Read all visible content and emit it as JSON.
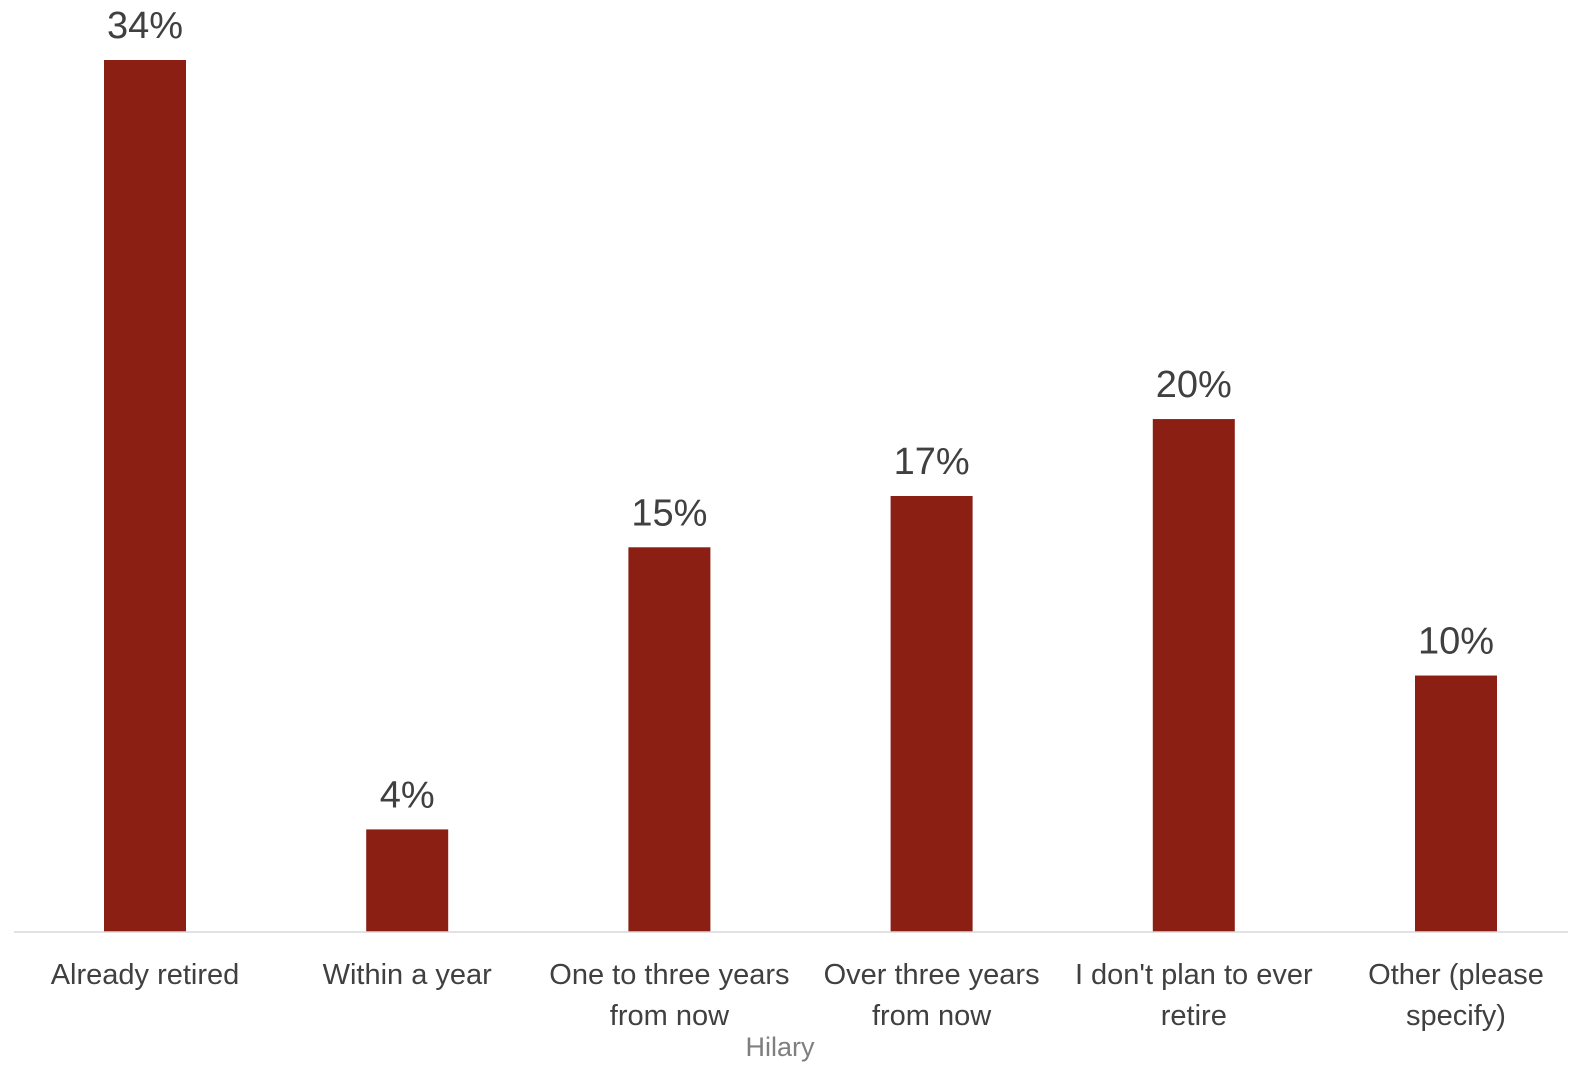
{
  "chart_data": {
    "type": "bar",
    "categories": [
      [
        "Already retired"
      ],
      [
        "Within a year"
      ],
      [
        "One to three years",
        "from now"
      ],
      [
        "Over three years",
        "from now"
      ],
      [
        "I don't plan to ever",
        "retire"
      ],
      [
        "Other (please",
        "specify)"
      ]
    ],
    "values": [
      34,
      4,
      15,
      17,
      20,
      10
    ],
    "value_labels": [
      "34%",
      "4%",
      "15%",
      "17%",
      "20%",
      "10%"
    ],
    "unit": "%",
    "ylim": [
      0,
      34
    ],
    "grid": false,
    "legend": "none",
    "bar_color": "#8b1f14",
    "axis_color": "#d9d9d9",
    "watermark": "Hilary"
  }
}
